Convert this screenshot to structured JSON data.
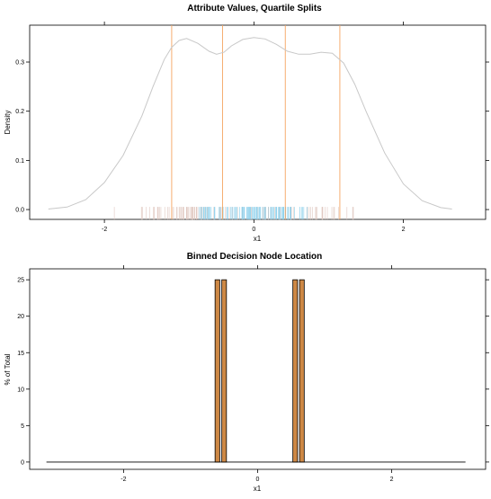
{
  "chart_data": [
    {
      "type": "line",
      "title": "Attribute Values, Quartile Splits",
      "xlabel": "x1",
      "ylabel": "Density",
      "xlim": [
        -3.0,
        3.1
      ],
      "ylim": [
        -0.02,
        0.375
      ],
      "x_ticks": [
        -2,
        0,
        2
      ],
      "x_tick_labels": [
        "-2",
        "0",
        "2"
      ],
      "y_ticks": [
        0.0,
        0.1,
        0.2,
        0.3
      ],
      "y_tick_labels": [
        "0.0",
        "0.1",
        "0.2",
        "0.3"
      ],
      "grid": false,
      "colors": {
        "density": "#c8c8c8",
        "split": "#f4a460",
        "rug": "#87ceeb",
        "rug_alt": "#e0c8c0"
      },
      "series": [
        {
          "x": [
            -2.75,
            -2.5,
            -2.25,
            -2.0,
            -1.75,
            -1.5,
            -1.35,
            -1.2,
            -1.1,
            -1.0,
            -0.9,
            -0.75,
            -0.6,
            -0.5,
            -0.4,
            -0.3,
            -0.15,
            0.0,
            0.15,
            0.3,
            0.45,
            0.6,
            0.75,
            0.9,
            1.05,
            1.2,
            1.35,
            1.5,
            1.75,
            2.0,
            2.25,
            2.5,
            2.65
          ],
          "values": [
            0.001,
            0.005,
            0.02,
            0.055,
            0.11,
            0.19,
            0.25,
            0.305,
            0.33,
            0.344,
            0.348,
            0.338,
            0.322,
            0.316,
            0.32,
            0.333,
            0.346,
            0.35,
            0.347,
            0.336,
            0.322,
            0.316,
            0.316,
            0.32,
            0.318,
            0.298,
            0.255,
            0.2,
            0.115,
            0.052,
            0.018,
            0.004,
            0.001
          ]
        }
      ],
      "split_lines": [
        -1.1,
        -0.42,
        0.42,
        1.15
      ],
      "rug_range": [
        -2.05,
        1.85
      ]
    },
    {
      "type": "bar",
      "title": "Binned Decision Node Location",
      "xlabel": "x1",
      "ylabel": "% of Total",
      "xlim": [
        -3.4,
        3.4
      ],
      "ylim": [
        -1,
        26.5
      ],
      "x_ticks": [
        -2,
        0,
        2
      ],
      "x_tick_labels": [
        "-2",
        "0",
        "2"
      ],
      "y_ticks": [
        0,
        5,
        10,
        15,
        20,
        25
      ],
      "y_tick_labels": [
        "0",
        "5",
        "10",
        "15",
        "20",
        "25"
      ],
      "grid": false,
      "colors": {
        "bar_fill": "#cd8845",
        "bar_stroke": "#000000",
        "baseline": "#000000"
      },
      "baseline_range": [
        -3.15,
        3.1
      ],
      "bar_width": 0.07,
      "bars": [
        {
          "x": -0.6,
          "value": 25
        },
        {
          "x": -0.5,
          "value": 25
        },
        {
          "x": 0.56,
          "value": 25
        },
        {
          "x": 0.66,
          "value": 25
        }
      ]
    }
  ]
}
